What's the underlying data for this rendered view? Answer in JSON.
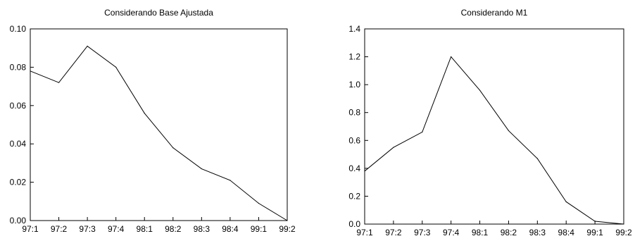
{
  "chart_data": [
    {
      "type": "line",
      "title": "Considerando Base Ajustada",
      "xlabel": "",
      "ylabel": "",
      "x": [
        "97:1",
        "97:2",
        "97:3",
        "97:4",
        "98:1",
        "98:2",
        "98:3",
        "98:4",
        "99:1",
        "99:2"
      ],
      "series": [
        {
          "values": [
            0.078,
            0.072,
            0.091,
            0.08,
            0.056,
            0.038,
            0.027,
            0.021,
            0.009,
            0.0
          ]
        }
      ],
      "yticks": [
        "0.00",
        "0.02",
        "0.04",
        "0.06",
        "0.08",
        "0.10"
      ],
      "ylim": [
        0,
        0.1
      ],
      "grid": false,
      "line_color": "#000000"
    },
    {
      "type": "line",
      "title": "Considerando M1",
      "xlabel": "",
      "ylabel": "",
      "x": [
        "97:1",
        "97:2",
        "97:3",
        "97:4",
        "98:1",
        "98:2",
        "98:3",
        "98:4",
        "99:1",
        "99:2"
      ],
      "series": [
        {
          "values": [
            0.38,
            0.55,
            0.66,
            1.2,
            0.96,
            0.67,
            0.47,
            0.16,
            0.02,
            0.0
          ]
        }
      ],
      "yticks": [
        "0.0",
        "0.2",
        "0.4",
        "0.6",
        "0.8",
        "1.0",
        "1.2",
        "1.4"
      ],
      "ylim": [
        0,
        1.4
      ],
      "grid": false,
      "line_color": "#000000"
    }
  ]
}
